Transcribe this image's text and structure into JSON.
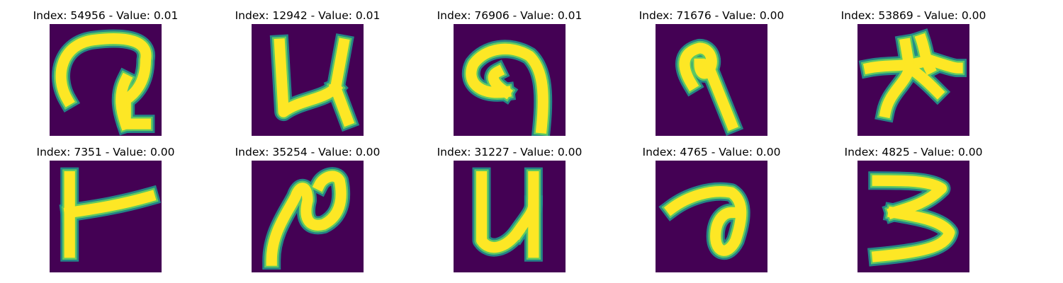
{
  "figure": {
    "background": "#ffffff",
    "colormap": {
      "name": "viridis",
      "background": "#440154",
      "edge": "#21918c",
      "mid": "#5ec962",
      "peak": "#fde725"
    }
  },
  "chart_data": {
    "type": "image-grid",
    "rows": 2,
    "cols": 5,
    "panels": [
      {
        "title": "Index: 54956 - Value: 0.01",
        "index": 54956,
        "value": 0.01,
        "glyph": "loop-hook"
      },
      {
        "title": "Index: 12942 - Value: 0.01",
        "index": 12942,
        "value": 0.01,
        "glyph": "u-with-tail"
      },
      {
        "title": "Index: 76906 - Value: 0.01",
        "index": 76906,
        "value": 0.01,
        "glyph": "curl-hook"
      },
      {
        "title": "Index: 71676 - Value: 0.00",
        "index": 71676,
        "value": 0.0,
        "glyph": "nine-like"
      },
      {
        "title": "Index: 53869 - Value: 0.00",
        "index": 53869,
        "value": 0.0,
        "glyph": "star-blob"
      },
      {
        "title": "Index: 7351 - Value: 0.00",
        "index": 7351,
        "value": 0.0,
        "glyph": "left-t"
      },
      {
        "title": "Index: 35254 - Value: 0.00",
        "index": 35254,
        "value": 0.0,
        "glyph": "swirl"
      },
      {
        "title": "Index: 31227 - Value: 0.00",
        "index": 31227,
        "value": 0.0,
        "glyph": "bold-u"
      },
      {
        "title": "Index: 4765 - Value: 0.00",
        "index": 4765,
        "value": 0.0,
        "glyph": "loop-a"
      },
      {
        "title": "Index: 4825 - Value: 0.00",
        "index": 4825,
        "value": 0.0,
        "glyph": "three"
      }
    ]
  }
}
